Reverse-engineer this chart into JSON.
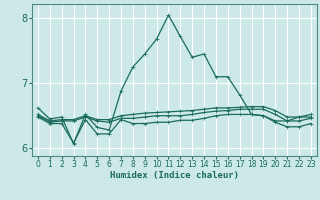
{
  "xlabel": "Humidex (Indice chaleur)",
  "xlim": [
    -0.5,
    23.5
  ],
  "ylim": [
    5.88,
    8.22
  ],
  "yticks": [
    6,
    7,
    8
  ],
  "xticks": [
    0,
    1,
    2,
    3,
    4,
    5,
    6,
    7,
    8,
    9,
    10,
    11,
    12,
    13,
    14,
    15,
    16,
    17,
    18,
    19,
    20,
    21,
    22,
    23
  ],
  "bg_color": "#cce9e7",
  "grid_color": "#ffffff",
  "line_color": "#1a6b5e",
  "lines": [
    {
      "x": [
        0,
        1,
        2,
        3,
        4,
        5,
        6,
        7,
        8,
        9,
        10,
        11,
        12,
        13,
        14,
        15,
        16,
        17,
        18,
        19,
        20,
        21,
        22,
        23
      ],
      "y": [
        6.62,
        6.45,
        6.48,
        6.07,
        6.52,
        6.32,
        6.28,
        6.88,
        7.25,
        7.45,
        7.68,
        8.05,
        7.72,
        7.4,
        7.45,
        7.1,
        7.1,
        6.82,
        6.52,
        6.5,
        6.42,
        6.42,
        6.48,
        6.48
      ],
      "marker": "+"
    },
    {
      "x": [
        0,
        1,
        2,
        3,
        4,
        5,
        6,
        7,
        8,
        9,
        10,
        11,
        12,
        13,
        14,
        15,
        16,
        17,
        18,
        19,
        20,
        21,
        22,
        23
      ],
      "y": [
        6.52,
        6.42,
        6.44,
        6.44,
        6.5,
        6.44,
        6.44,
        6.5,
        6.52,
        6.54,
        6.55,
        6.56,
        6.57,
        6.58,
        6.6,
        6.62,
        6.62,
        6.63,
        6.64,
        6.64,
        6.58,
        6.48,
        6.48,
        6.52
      ],
      "marker": "+"
    },
    {
      "x": [
        0,
        1,
        2,
        3,
        4,
        5,
        6,
        7,
        8,
        9,
        10,
        11,
        12,
        13,
        14,
        15,
        16,
        17,
        18,
        19,
        20,
        21,
        22,
        23
      ],
      "y": [
        6.48,
        6.38,
        6.38,
        6.08,
        6.44,
        6.22,
        6.22,
        6.44,
        6.38,
        6.38,
        6.4,
        6.4,
        6.43,
        6.43,
        6.46,
        6.5,
        6.52,
        6.52,
        6.52,
        6.5,
        6.4,
        6.33,
        6.33,
        6.38
      ],
      "marker": "+"
    },
    {
      "x": [
        0,
        1,
        2,
        3,
        4,
        5,
        6,
        7,
        8,
        9,
        10,
        11,
        12,
        13,
        14,
        15,
        16,
        17,
        18,
        19,
        20,
        21,
        22,
        23
      ],
      "y": [
        6.5,
        6.4,
        6.42,
        6.42,
        6.48,
        6.42,
        6.4,
        6.46,
        6.46,
        6.48,
        6.5,
        6.5,
        6.5,
        6.52,
        6.55,
        6.57,
        6.58,
        6.6,
        6.6,
        6.6,
        6.52,
        6.42,
        6.42,
        6.46
      ],
      "marker": "+"
    }
  ]
}
